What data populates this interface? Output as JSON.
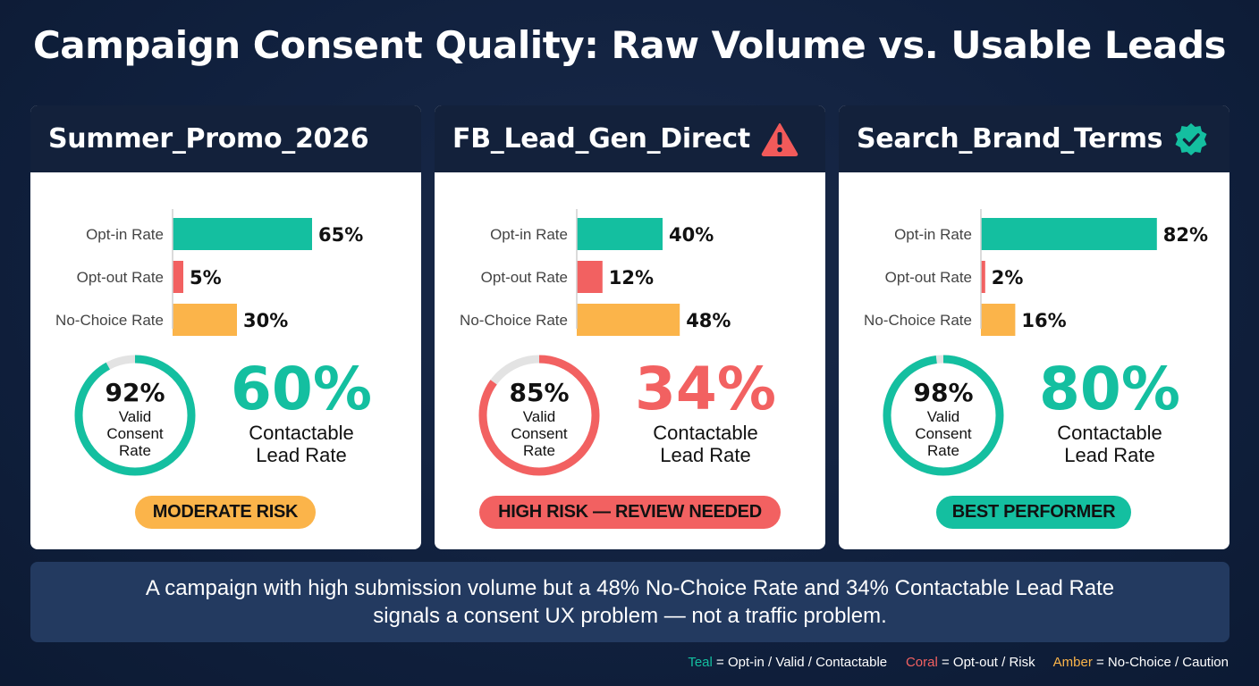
{
  "title": "Campaign Consent Quality: Raw Volume vs. Usable Leads",
  "colors": {
    "teal": "#14bfa0",
    "coral": "#f26161",
    "amber": "#fbb44a",
    "track": "#e3e3e3"
  },
  "chart_data": [
    {
      "type": "bar",
      "title": "Summer_Promo_2026",
      "categories": [
        "Opt-in Rate",
        "Opt-out Rate",
        "No-Choice Rate"
      ],
      "values": [
        65,
        5,
        30
      ],
      "value_labels": [
        "65%",
        "5%",
        "30%"
      ],
      "colors": [
        "#14bfa0",
        "#f26161",
        "#fbb44a"
      ],
      "xlim": [
        0,
        100
      ],
      "valid_consent": {
        "value": 92,
        "label": "92%",
        "caption": [
          "Valid",
          "Consent",
          "Rate"
        ],
        "color": "#14bfa0"
      },
      "contactable": {
        "label": "60%",
        "caption": [
          "Contactable",
          "Lead Rate"
        ],
        "color": "#14bfa0"
      },
      "badge": {
        "text": "MODERATE RISK",
        "color": "#fbb44a"
      },
      "header_icon": "none"
    },
    {
      "type": "bar",
      "title": "FB_Lead_Gen_Direct",
      "categories": [
        "Opt-in Rate",
        "Opt-out Rate",
        "No-Choice Rate"
      ],
      "values": [
        40,
        12,
        48
      ],
      "value_labels": [
        "40%",
        "12%",
        "48%"
      ],
      "colors": [
        "#14bfa0",
        "#f26161",
        "#fbb44a"
      ],
      "xlim": [
        0,
        100
      ],
      "valid_consent": {
        "value": 85,
        "label": "85%",
        "caption": [
          "Valid",
          "Consent",
          "Rate"
        ],
        "color": "#f26161"
      },
      "contactable": {
        "label": "34%",
        "caption": [
          "Contactable",
          "Lead Rate"
        ],
        "color": "#f26161"
      },
      "badge": {
        "text": "HIGH RISK — REVIEW NEEDED",
        "color": "#f26161"
      },
      "header_icon": "warning-triangle-icon"
    },
    {
      "type": "bar",
      "title": "Search_Brand_Terms",
      "categories": [
        "Opt-in Rate",
        "Opt-out Rate",
        "No-Choice Rate"
      ],
      "values": [
        82,
        2,
        16
      ],
      "value_labels": [
        "82%",
        "2%",
        "16%"
      ],
      "colors": [
        "#14bfa0",
        "#f26161",
        "#fbb44a"
      ],
      "xlim": [
        0,
        100
      ],
      "valid_consent": {
        "value": 98,
        "label": "98%",
        "caption": [
          "Valid",
          "Consent",
          "Rate"
        ],
        "color": "#14bfa0"
      },
      "contactable": {
        "label": "80%",
        "caption": [
          "Contactable",
          "Lead Rate"
        ],
        "color": "#14bfa0"
      },
      "badge": {
        "text": "BEST PERFORMER",
        "color": "#14bfa0"
      },
      "header_icon": "verified-badge-icon"
    }
  ],
  "footer": {
    "line1": "A campaign with high submission volume but a 48% No-Choice Rate and 34% Contactable Lead Rate",
    "line2": "signals a consent UX problem — not a traffic problem."
  },
  "legend": [
    {
      "key": "Teal",
      "text": " = Opt-in / Valid / Contactable",
      "color": "#14bfa0"
    },
    {
      "key": "Coral",
      "text": " = Opt-out / Risk",
      "color": "#f26161"
    },
    {
      "key": "Amber",
      "text": " = No-Choice / Caution",
      "color": "#fbb44a"
    }
  ]
}
